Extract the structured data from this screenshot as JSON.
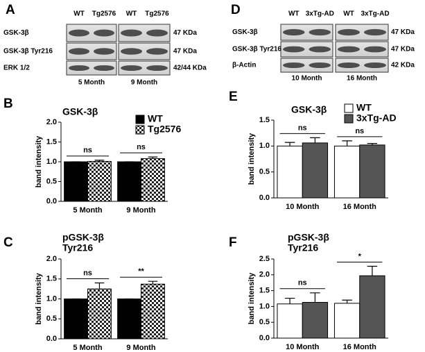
{
  "blots": [
    {
      "panel_label": "A",
      "groups": [
        {
          "lanes": [
            "WT",
            "Tg2576"
          ],
          "time": "5 Month"
        },
        {
          "lanes": [
            "WT",
            "Tg2576"
          ],
          "time": "9 Month"
        }
      ],
      "rows": [
        {
          "name": "GSK-3β",
          "size": "47 KDa"
        },
        {
          "name": "GSK-3β Tyr216",
          "size": "47 KDa"
        },
        {
          "name": "ERK 1/2",
          "size": "42/44 KDa"
        }
      ]
    },
    {
      "panel_label": "D",
      "groups": [
        {
          "lanes": [
            "WT",
            "3xTg-AD"
          ],
          "time": "10 Month"
        },
        {
          "lanes": [
            "WT",
            "3xTg-AD"
          ],
          "time": "16 Month"
        }
      ],
      "rows": [
        {
          "name": "GSK-3β",
          "size": "47 KDa"
        },
        {
          "name": "GSK-3β Tyr216",
          "size": "47 KDa"
        },
        {
          "name": "β-Actin",
          "size": "42 KDa"
        }
      ]
    }
  ],
  "chart_data": [
    {
      "type": "bar",
      "panel_label": "B",
      "title": [
        "GSK-3β"
      ],
      "ylabel": "band intensity",
      "legend": true,
      "categories": [
        "5 Month",
        "9 Month"
      ],
      "series": [
        {
          "name": "WT",
          "color": "#000000",
          "values": [
            1.0,
            1.0
          ],
          "errors": [
            0,
            0
          ]
        },
        {
          "name": "Tg2576",
          "color": "#000000",
          "pattern": "checker",
          "values": [
            1.01,
            1.08
          ],
          "errors": [
            0.03,
            0.04
          ]
        }
      ],
      "significance": [
        "ns",
        "ns"
      ],
      "ylim": [
        0,
        2
      ],
      "yticks": [
        {
          "value": 0,
          "label": "0.0"
        },
        0.5,
        {
          "value": 1,
          "label": "1.0"
        },
        1.5,
        {
          "value": 2,
          "label": "2.0"
        }
      ]
    },
    {
      "type": "bar",
      "panel_label": "C",
      "title": [
        "pGSK-3β",
        "Tyr216"
      ],
      "ylabel": "band intensity",
      "legend": false,
      "categories": [
        "5 Month",
        "9 Month"
      ],
      "series": [
        {
          "color": "#000000",
          "values": [
            1.0,
            1.0
          ],
          "errors": [
            0,
            0
          ]
        },
        {
          "color": "#000000",
          "pattern": "checker",
          "values": [
            1.25,
            1.37
          ],
          "errors": [
            0.15,
            0.07
          ]
        }
      ],
      "significance": [
        "ns",
        "**"
      ],
      "ylim": [
        0,
        2
      ],
      "yticks": [
        {
          "value": 0,
          "label": "0.0"
        },
        0.5,
        {
          "value": 1,
          "label": "1.0"
        },
        1.5,
        {
          "value": 2,
          "label": "2.0"
        }
      ]
    },
    {
      "type": "bar",
      "panel_label": "E",
      "title": [
        "GSK-3β"
      ],
      "ylabel": "band intensity",
      "legend": true,
      "categories": [
        "10  Month",
        "16  Month"
      ],
      "series": [
        {
          "name": "WT",
          "color": "#ffffff",
          "values": [
            1.0,
            1.0
          ],
          "errors": [
            0.07,
            0.1
          ]
        },
        {
          "name": "3xTg-AD",
          "color": "#555555",
          "values": [
            1.06,
            1.02
          ],
          "errors": [
            0.1,
            0.03
          ]
        }
      ],
      "significance": [
        "ns",
        "ns"
      ],
      "ylim": [
        0,
        1.5
      ],
      "yticks": [
        {
          "value": 0,
          "label": "0.0"
        },
        0.5,
        {
          "value": 1,
          "label": "1.0"
        },
        1.5
      ]
    },
    {
      "type": "bar",
      "panel_label": "F",
      "title": [
        "pGSK-3β",
        "Tyr216"
      ],
      "ylabel": "band intensity",
      "legend": false,
      "categories": [
        "10 Month",
        "16 Month"
      ],
      "series": [
        {
          "color": "#ffffff",
          "values": [
            1.08,
            1.1
          ],
          "errors": [
            0.18,
            0.1
          ]
        },
        {
          "color": "#555555",
          "values": [
            1.13,
            1.97
          ],
          "errors": [
            0.3,
            0.3
          ]
        }
      ],
      "significance": [
        "ns",
        "*"
      ],
      "ylim": [
        0,
        2.5
      ],
      "yticks": [
        {
          "value": 0,
          "label": "0.0"
        },
        0.5,
        {
          "value": 1,
          "label": "1.0"
        },
        1.5,
        {
          "value": 2,
          "label": "2.0"
        },
        2.5
      ]
    }
  ]
}
